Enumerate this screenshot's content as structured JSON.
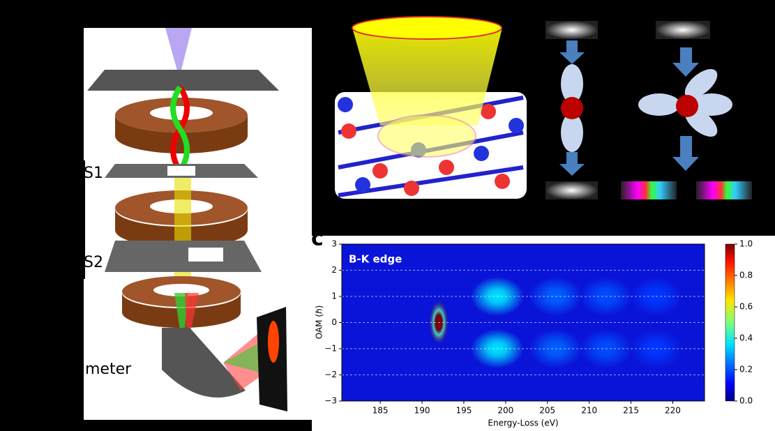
{
  "figure_labels": {
    "s1": "S1",
    "s2": "S2",
    "spectrometer": "meter",
    "panel_c": "c"
  },
  "chart_data": {
    "type": "heatmap",
    "title": "B-K edge",
    "xlabel": "Energy-Loss (eV)",
    "ylabel": "OAM (ℏ)",
    "xlim": [
      180.4,
      223.8
    ],
    "ylim": [
      -3,
      3
    ],
    "xticks": [
      185,
      190,
      195,
      200,
      205,
      210,
      215,
      220
    ],
    "yticks": [
      {
        "value": -3,
        "label": "−3"
      },
      {
        "value": -2,
        "label": "−2"
      },
      {
        "value": -1,
        "label": "−1"
      },
      0,
      1,
      2,
      3
    ],
    "grid": true,
    "colormap": "jet",
    "clim": [
      0,
      1
    ],
    "cticks": [
      {
        "value": 0,
        "label": "0.0"
      },
      0.2,
      0.4,
      0.6,
      0.8,
      {
        "value": 1,
        "label": "1.0"
      }
    ],
    "spots": [
      {
        "x": 192,
        "y": 0,
        "value": 1.0
      },
      {
        "x": 199,
        "y": 1,
        "value": 0.35
      },
      {
        "x": 199,
        "y": -1,
        "value": 0.35
      },
      {
        "x": 206,
        "y": 1,
        "value": 0.22
      },
      {
        "x": 206,
        "y": -1,
        "value": 0.22
      },
      {
        "x": 212,
        "y": 1,
        "value": 0.2
      },
      {
        "x": 212,
        "y": -1,
        "value": 0.2
      },
      {
        "x": 218,
        "y": 1,
        "value": 0.18
      },
      {
        "x": 218,
        "y": -1,
        "value": 0.18
      }
    ]
  }
}
